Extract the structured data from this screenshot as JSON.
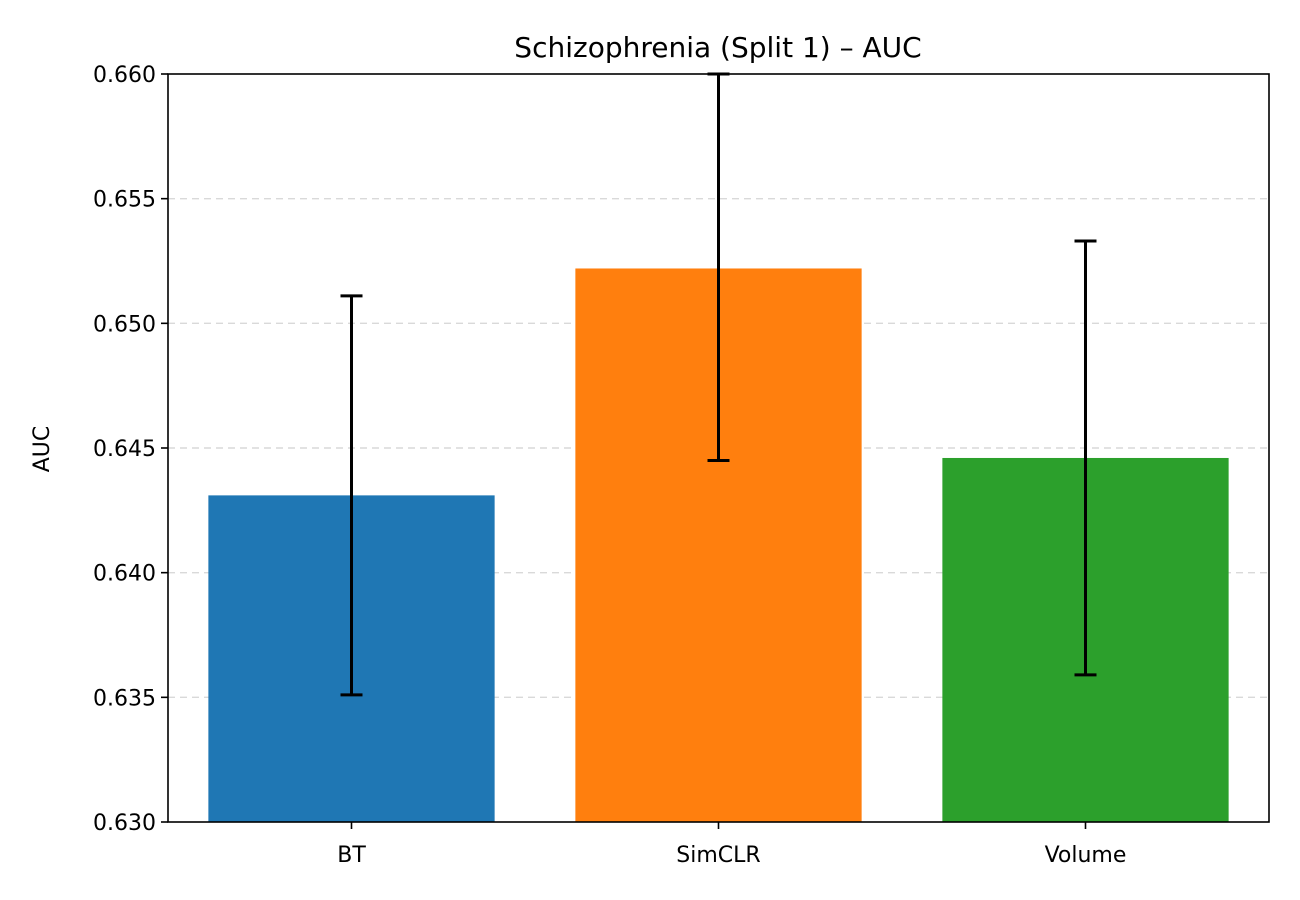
{
  "chart_data": {
    "type": "bar",
    "title": "Schizophrenia (Split 1) – AUC",
    "xlabel": "",
    "ylabel": "AUC",
    "categories": [
      "BT",
      "SimCLR",
      "Volume"
    ],
    "values": [
      0.6431,
      0.6522,
      0.6446
    ],
    "error_low": [
      0.6351,
      0.6445,
      0.6359
    ],
    "error_high": [
      0.6511,
      0.66,
      0.6533
    ],
    "colors": [
      "#1f77b4",
      "#ff7f0e",
      "#2ca02c"
    ],
    "ylim": [
      0.63,
      0.66
    ],
    "yticks": [
      "0.630",
      "0.635",
      "0.640",
      "0.645",
      "0.650",
      "0.655",
      "0.660"
    ],
    "grid": "y-dashed",
    "legend": "none"
  }
}
